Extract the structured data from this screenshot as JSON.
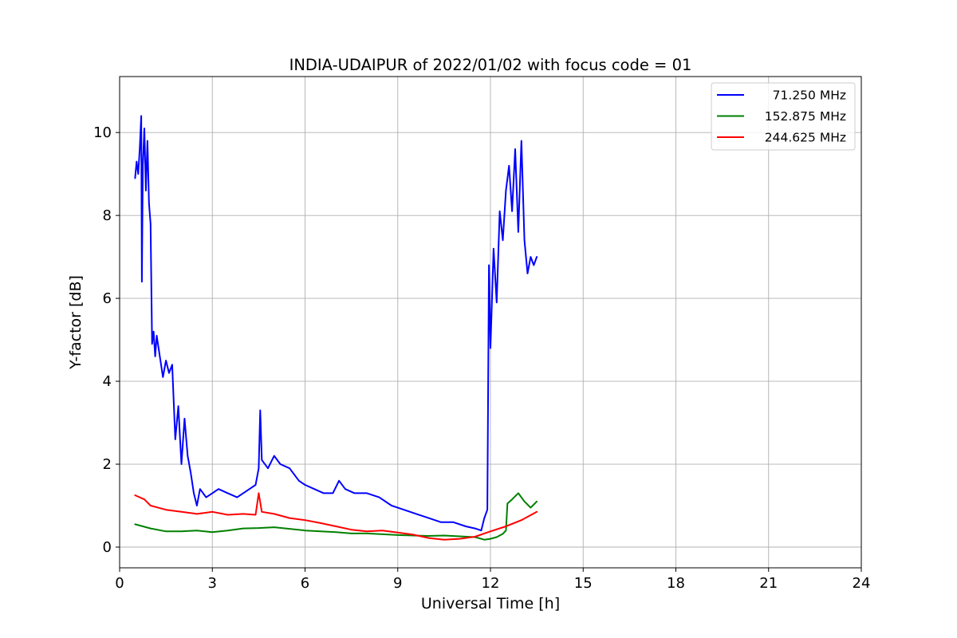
{
  "chart_data": {
    "type": "line",
    "title": "INDIA-UDAIPUR of 2022/01/02 with focus code = 01",
    "xlabel": "Universal Time [h]",
    "ylabel": "Y-factor [dB]",
    "xlim": [
      0,
      24
    ],
    "ylim": [
      -0.5,
      11.35
    ],
    "xticks": [
      0,
      3,
      6,
      9,
      12,
      15,
      18,
      21,
      24
    ],
    "yticks": [
      0,
      2,
      4,
      6,
      8,
      10
    ],
    "grid": true,
    "legend_position": "top-right",
    "series": [
      {
        "name": " 71.250 MHz",
        "color": "#0000ff",
        "x": [
          0.5,
          0.55,
          0.6,
          0.65,
          0.7,
          0.72,
          0.75,
          0.8,
          0.85,
          0.9,
          0.95,
          1.0,
          1.05,
          1.1,
          1.15,
          1.2,
          1.3,
          1.4,
          1.5,
          1.6,
          1.7,
          1.8,
          1.9,
          2.0,
          2.1,
          2.2,
          2.3,
          2.4,
          2.5,
          2.6,
          2.8,
          3.0,
          3.2,
          3.5,
          3.8,
          4.0,
          4.2,
          4.4,
          4.5,
          4.55,
          4.6,
          4.8,
          5.0,
          5.2,
          5.5,
          5.8,
          6.0,
          6.3,
          6.6,
          6.9,
          7.1,
          7.3,
          7.6,
          8.0,
          8.4,
          8.8,
          9.2,
          9.6,
          10.0,
          10.4,
          10.8,
          11.2,
          11.5,
          11.7,
          11.8,
          11.9,
          11.95,
          12.0,
          12.1,
          12.2,
          12.3,
          12.4,
          12.5,
          12.6,
          12.7,
          12.8,
          12.9,
          13.0,
          13.1,
          13.2,
          13.3,
          13.4,
          13.5
        ],
        "y": [
          8.9,
          9.3,
          9.0,
          9.6,
          10.4,
          6.4,
          9.2,
          10.1,
          8.6,
          9.8,
          8.3,
          7.8,
          4.9,
          5.2,
          4.6,
          5.1,
          4.6,
          4.1,
          4.5,
          4.2,
          4.4,
          2.6,
          3.4,
          2.0,
          3.1,
          2.2,
          1.8,
          1.3,
          1.0,
          1.4,
          1.2,
          1.3,
          1.4,
          1.3,
          1.2,
          1.3,
          1.4,
          1.5,
          1.9,
          3.3,
          2.1,
          1.9,
          2.2,
          2.0,
          1.9,
          1.6,
          1.5,
          1.4,
          1.3,
          1.3,
          1.6,
          1.4,
          1.3,
          1.3,
          1.2,
          1.0,
          0.9,
          0.8,
          0.7,
          0.6,
          0.6,
          0.5,
          0.45,
          0.4,
          0.7,
          0.9,
          6.8,
          4.8,
          7.2,
          5.9,
          8.1,
          7.4,
          8.6,
          9.2,
          8.1,
          9.6,
          7.6,
          9.8,
          7.4,
          6.6,
          7.0,
          6.8,
          7.0
        ]
      },
      {
        "name": "152.875 MHz",
        "color": "#008000",
        "x": [
          0.5,
          1.0,
          1.5,
          2.0,
          2.5,
          3.0,
          3.5,
          4.0,
          4.5,
          5.0,
          5.5,
          6.0,
          6.5,
          7.0,
          7.5,
          8.0,
          8.5,
          9.0,
          9.5,
          10.0,
          10.5,
          11.0,
          11.5,
          11.8,
          12.0,
          12.2,
          12.4,
          12.5,
          12.55,
          12.7,
          12.9,
          13.1,
          13.3,
          13.5
        ],
        "y": [
          0.55,
          0.45,
          0.38,
          0.38,
          0.4,
          0.36,
          0.4,
          0.45,
          0.46,
          0.48,
          0.44,
          0.4,
          0.38,
          0.36,
          0.33,
          0.33,
          0.31,
          0.29,
          0.28,
          0.27,
          0.28,
          0.26,
          0.24,
          0.18,
          0.2,
          0.24,
          0.32,
          0.4,
          1.05,
          1.15,
          1.3,
          1.1,
          0.95,
          1.1
        ]
      },
      {
        "name": "244.625 MHz",
        "color": "#ff0000",
        "x": [
          0.5,
          0.8,
          1.0,
          1.5,
          2.0,
          2.5,
          3.0,
          3.5,
          4.0,
          4.4,
          4.5,
          4.6,
          5.0,
          5.5,
          6.0,
          6.5,
          7.0,
          7.5,
          8.0,
          8.5,
          9.0,
          9.5,
          10.0,
          10.5,
          11.0,
          11.5,
          12.0,
          12.5,
          13.0,
          13.5
        ],
        "y": [
          1.25,
          1.15,
          1.0,
          0.9,
          0.85,
          0.8,
          0.85,
          0.78,
          0.8,
          0.78,
          1.3,
          0.85,
          0.8,
          0.7,
          0.65,
          0.58,
          0.5,
          0.42,
          0.38,
          0.4,
          0.35,
          0.3,
          0.22,
          0.18,
          0.2,
          0.25,
          0.38,
          0.5,
          0.65,
          0.85
        ]
      }
    ]
  }
}
